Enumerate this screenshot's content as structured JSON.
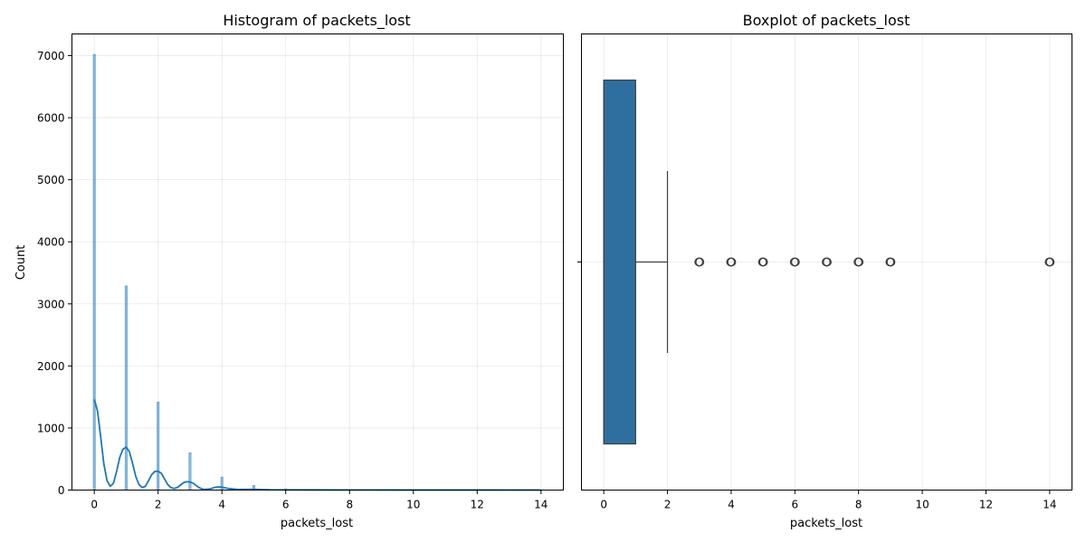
{
  "chart_data": [
    {
      "type": "bar",
      "title": "Histogram of packets_lost",
      "xlabel": "packets_lost",
      "ylabel": "Count",
      "xlim": [
        -0.7,
        14.7
      ],
      "ylim": [
        0,
        7350
      ],
      "xticks": [
        0,
        2,
        4,
        6,
        8,
        10,
        12,
        14
      ],
      "yticks": [
        0,
        1000,
        2000,
        3000,
        4000,
        5000,
        6000,
        7000
      ],
      "grid": true,
      "bar_color": "#1f77b4",
      "bars": [
        {
          "x": 0,
          "value": 7020
        },
        {
          "x": 1,
          "value": 3290
        },
        {
          "x": 2,
          "value": 1420
        },
        {
          "x": 3,
          "value": 600
        },
        {
          "x": 4,
          "value": 210
        },
        {
          "x": 5,
          "value": 75
        },
        {
          "x": 6,
          "value": 20
        },
        {
          "x": 7,
          "value": 8
        },
        {
          "x": 8,
          "value": 4
        },
        {
          "x": 9,
          "value": 2
        },
        {
          "x": 14,
          "value": 1
        }
      ],
      "kde": {
        "color": "#1f77b4",
        "x": [
          0,
          0.1,
          0.2,
          0.3,
          0.4,
          0.5,
          0.6,
          0.7,
          0.8,
          0.9,
          1.0,
          1.1,
          1.2,
          1.3,
          1.4,
          1.5,
          1.6,
          1.7,
          1.8,
          1.9,
          2.0,
          2.1,
          2.2,
          2.3,
          2.4,
          2.5,
          2.6,
          2.7,
          2.8,
          2.9,
          3.0,
          3.1,
          3.2,
          3.3,
          3.4,
          3.5,
          3.6,
          3.7,
          3.8,
          3.9,
          4.0,
          4.2,
          4.5,
          5.0,
          5.5,
          6.0,
          7.0,
          8.0,
          10.0,
          12.0,
          14.0
        ],
        "y": [
          1460,
          1280,
          860,
          420,
          150,
          60,
          110,
          300,
          530,
          660,
          690,
          620,
          430,
          220,
          90,
          40,
          60,
          150,
          250,
          300,
          305,
          270,
          180,
          90,
          40,
          25,
          40,
          80,
          120,
          135,
          130,
          110,
          70,
          35,
          15,
          12,
          18,
          30,
          45,
          50,
          45,
          25,
          10,
          12,
          5,
          4,
          3,
          2,
          1,
          1,
          0
        ]
      }
    },
    {
      "type": "boxplot",
      "title": "Boxplot of packets_lost",
      "xlabel": "packets_lost",
      "xlim": [
        -0.7,
        14.7
      ],
      "xticks": [
        0,
        2,
        4,
        6,
        8,
        10,
        12,
        14
      ],
      "grid": true,
      "box_color": "#2f6f9f",
      "q1": 0,
      "median": 0,
      "q3": 1,
      "whisker_low": 0,
      "whisker_high": 2,
      "outliers": [
        3,
        4,
        5,
        6,
        7,
        8,
        9,
        14
      ]
    }
  ]
}
